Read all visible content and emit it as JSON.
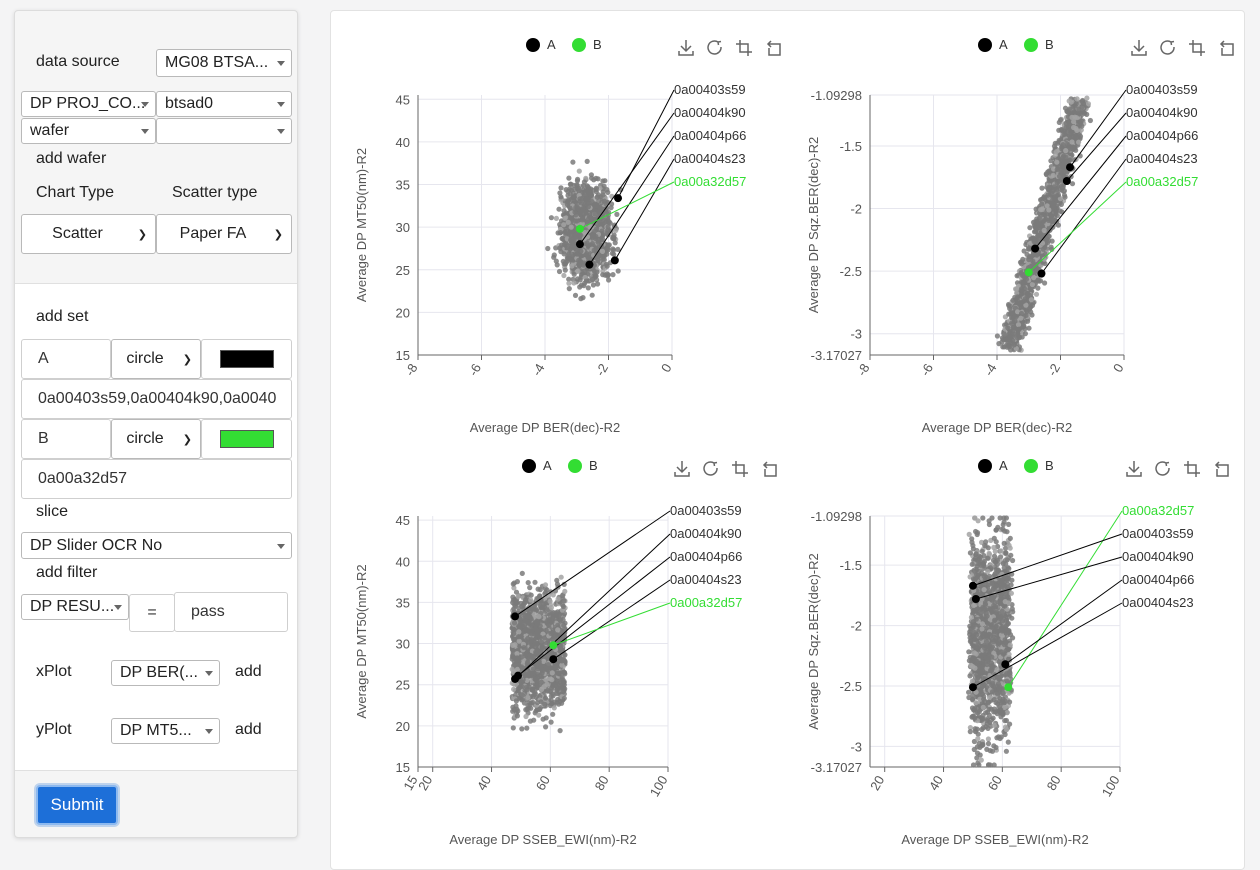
{
  "form": {
    "data_source_label": "data source",
    "data_source_value": "MG08 BTSA...",
    "proj_select": "DP PROJ_CO...",
    "proj_value": "btsad0",
    "group_select": "wafer",
    "group_value": "",
    "add_wafer_label": "add wafer",
    "chart_type_label": "Chart Type",
    "scatter_type_label": "Scatter type",
    "chart_type_value": "Scatter",
    "scatter_type_value": "Paper FA",
    "add_set_label": "add set",
    "sets": [
      {
        "name": "A",
        "shape": "circle",
        "color": "#000000",
        "items": "0a00403s59,0a00404k90,0a0040"
      },
      {
        "name": "B",
        "shape": "circle",
        "color": "#33dd33",
        "items": "0a00a32d57"
      }
    ],
    "slice_label": "slice",
    "slice_value": "DP Slider OCR No",
    "add_filter_label": "add filter",
    "filter_field": "DP RESU...",
    "filter_op": "=",
    "filter_value": "pass",
    "xplot_label": "xPlot",
    "xplot_value": "DP BER(...",
    "xplot_add": "add",
    "yplot_label": "yPlot",
    "yplot_value": "DP MT5...",
    "yplot_add": "add",
    "submit_label": "Submit"
  },
  "toolbar_icons": [
    "download-icon",
    "refresh-icon",
    "crop-icon",
    "restore-icon"
  ],
  "chart_data": [
    {
      "type": "scatter",
      "xlabel": "Average DP BER(dec)-R2",
      "ylabel": "Average DP MT50(nm)-R2",
      "xlim": [
        -8,
        0
      ],
      "ylim": [
        15,
        45.5
      ],
      "xticks": [
        "-8",
        "-6",
        "-4",
        "-2",
        "0"
      ],
      "yticks": [
        15,
        20,
        25,
        30,
        35,
        40,
        45
      ],
      "legend": [
        "A",
        "B"
      ],
      "cloud": {
        "cx": -2.7,
        "cy": 29.5,
        "rx": 0.75,
        "ry": 6.5
      },
      "series": [
        {
          "name": "A",
          "color": "#000000",
          "points": [
            [
              -1.7,
              33.4
            ],
            [
              -2.9,
              28.0
            ],
            [
              -2.6,
              25.6
            ],
            [
              -1.8,
              26.1
            ]
          ],
          "labels": [
            "0a00403s59",
            "0a00404k90",
            "0a00404p66",
            "0a00404s23"
          ]
        },
        {
          "name": "B",
          "color": "#33dd33",
          "points": [
            [
              -2.9,
              29.8
            ]
          ],
          "labels": [
            "0a00a32d57"
          ]
        }
      ]
    },
    {
      "type": "scatter",
      "xlabel": "Average DP BER(dec)-R2",
      "ylabel": "Average DP Sqz.BER(dec)-R2",
      "xlim": [
        -8,
        0
      ],
      "ylim": [
        -3.17027,
        -1.09298
      ],
      "xticks": [
        "-8",
        "-6",
        "-4",
        "-2",
        "0"
      ],
      "ytick_labels": [
        "-1.09298",
        "-1.5",
        "-2",
        "-2.5",
        "-3",
        "-3.17027"
      ],
      "ytick_values": [
        -1.09298,
        -1.5,
        -2,
        -2.5,
        -3,
        -3.17027
      ],
      "legend": [
        "A",
        "B"
      ],
      "series": [
        {
          "name": "A",
          "color": "#000000",
          "points": [
            [
              -1.7,
              -1.67
            ],
            [
              -1.8,
              -1.78
            ],
            [
              -2.8,
              -2.32
            ],
            [
              -2.6,
              -2.52
            ]
          ],
          "labels": [
            "0a00403s59",
            "0a00404k90",
            "0a00404p66",
            "0a00404s23"
          ]
        },
        {
          "name": "B",
          "color": "#33dd33",
          "points": [
            [
              -3.0,
              -2.51
            ]
          ],
          "labels": [
            "0a00a32d57"
          ]
        }
      ]
    },
    {
      "type": "scatter",
      "xlabel": "Average DP SSEB_EWI(nm)-R2",
      "ylabel": "Average DP MT50(nm)-R2",
      "xlim": [
        15,
        100
      ],
      "ylim": [
        15,
        45.5
      ],
      "xticks": [
        "15",
        "20",
        "40",
        "60",
        "80",
        "100"
      ],
      "yticks": [
        15,
        20,
        25,
        30,
        35,
        40,
        45
      ],
      "legend": [
        "A",
        "B"
      ],
      "series": [
        {
          "name": "A",
          "color": "#000000",
          "points": [
            [
              48,
              33.3
            ],
            [
              48,
              25.7
            ],
            [
              49,
              26.1
            ],
            [
              61,
              28.1
            ]
          ],
          "labels": [
            "0a00403s59",
            "0a00404k90",
            "0a00404p66",
            "0a00404s23"
          ]
        },
        {
          "name": "B",
          "color": "#33dd33",
          "points": [
            [
              61,
              29.8
            ]
          ],
          "labels": [
            "0a00a32d57"
          ]
        }
      ]
    },
    {
      "type": "scatter",
      "xlabel": "Average DP SSEB_EWI(nm)-R2",
      "ylabel": "Average DP Sqz.BER(dec)-R2",
      "xlim": [
        15,
        100
      ],
      "ylim": [
        -3.17027,
        -1.09298
      ],
      "xticks": [
        "20",
        "40",
        "60",
        "80",
        "100"
      ],
      "ytick_labels": [
        "-1.09298",
        "-1.5",
        "-2",
        "-2.5",
        "-3",
        "-3.17027"
      ],
      "ytick_values": [
        -1.09298,
        -1.5,
        -2,
        -2.5,
        -3,
        -3.17027
      ],
      "legend": [
        "A",
        "B"
      ],
      "series": [
        {
          "name": "A",
          "color": "#000000",
          "points": [
            [
              50,
              -1.67
            ],
            [
              51,
              -1.78
            ],
            [
              61,
              -2.32
            ],
            [
              50,
              -2.51
            ]
          ],
          "labels": [
            "0a00403s59",
            "0a00404k90",
            "0a00404p66",
            "0a00404s23"
          ]
        },
        {
          "name": "B",
          "color": "#33dd33",
          "points": [
            [
              62,
              -2.51
            ]
          ],
          "labels": [
            "0a00a32d57"
          ]
        }
      ]
    }
  ]
}
